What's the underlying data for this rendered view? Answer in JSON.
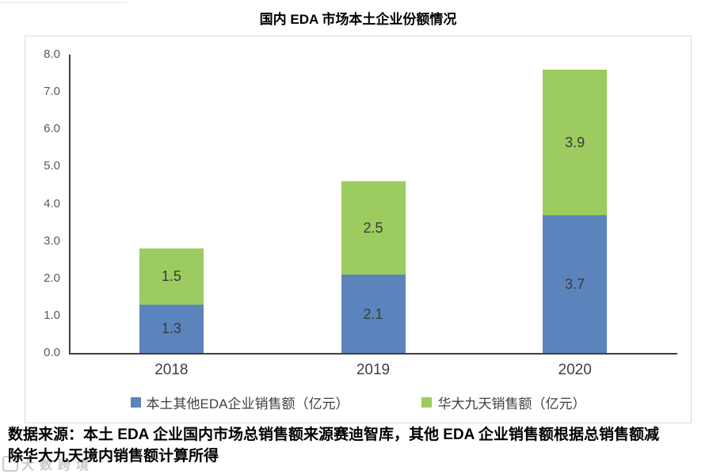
{
  "page": {
    "title": "国内 EDA 市场本土企业份额情况",
    "source_line1": "数据来源：本土 EDA 企业国内市场总销售额来源赛迪智库，其他 EDA 企业销售额根据总销售额减",
    "source_line2": "除华大九天境内销售额计算所得",
    "watermark": "大数跨境"
  },
  "chart_data": {
    "type": "bar",
    "stacked": true,
    "title": "国内 EDA 市场本土企业份额情况",
    "categories": [
      "2018",
      "2019",
      "2020"
    ],
    "series": [
      {
        "name": "本土其他EDA企业销售额（亿元）",
        "color": "#5B84BC",
        "values": [
          1.3,
          2.1,
          3.7
        ]
      },
      {
        "name": "华大九天销售额（亿元）",
        "color": "#9CCB5F",
        "values": [
          1.5,
          2.5,
          3.9
        ]
      }
    ],
    "totals": [
      2.8,
      4.6,
      7.6
    ],
    "ylim": [
      0,
      8
    ],
    "y_ticks": [
      "0.0",
      "1.0",
      "2.0",
      "3.0",
      "4.0",
      "5.0",
      "6.0",
      "7.0",
      "8.0"
    ],
    "grid": false,
    "legend_position": "bottom",
    "value_labels": true
  },
  "colors": {
    "axis": "#404040",
    "tick_label": "#595959",
    "bar_label": "#3b3b3b",
    "card_border": "#dcdcdc"
  }
}
